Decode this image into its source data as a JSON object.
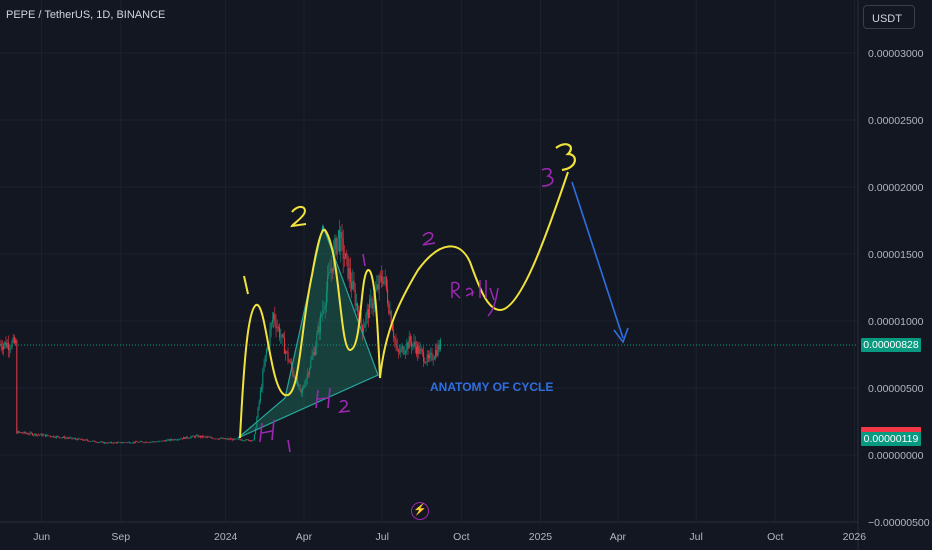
{
  "header": {
    "title": "PEPE / TetherUS, 1D, BINANCE"
  },
  "toolbar": {
    "currency_label": "USDT"
  },
  "price_badges": {
    "last": "0.00000828",
    "low_line": "0.00000119"
  },
  "annotations": {
    "cycle_text": "ANATOMY OF CYCLE",
    "labels": [
      "1",
      "2",
      "3",
      "1",
      "2",
      "3",
      "H1",
      "H2",
      "Rally"
    ],
    "bolt_icon": "lightning-bolt-icon"
  },
  "colors": {
    "background": "#131722",
    "up": "#089981",
    "down": "#f23645",
    "yellow_path": "#f2e33c",
    "blue_arrow": "#2f6fe0",
    "purple_text": "#9c27b0",
    "green_fill": "#1f8a6b"
  },
  "chart_data": {
    "type": "candlestick",
    "title": "PEPE / TetherUS, 1D, BINANCE",
    "y_ticks": [
      "0.00003000",
      "0.00002500",
      "0.00002000",
      "0.00001500",
      "0.00001000",
      "0.00000500",
      "0.00000000",
      "−0.00000500"
    ],
    "x_ticks": [
      "Jun",
      "Sep",
      "2024",
      "Apr",
      "Jul",
      "Oct",
      "2025",
      "Apr",
      "Jul",
      "Oct",
      "2026"
    ],
    "ylim": [
      -5e-06,
      3.3e-05
    ],
    "grid": true,
    "series": [
      {
        "points": [
          [
            "2023-05-20",
            1.7e-06
          ],
          [
            "2023-07-15",
            1.3e-06
          ],
          [
            "2023-09-01",
            9e-07
          ],
          [
            "2023-11-01",
            1e-06
          ],
          [
            "2023-12-15",
            1.4e-06
          ],
          [
            "2024-01-15",
            1.2e-06
          ],
          [
            "2024-02-20",
            1.1e-06
          ],
          [
            "2024-03-05",
            7.5e-06
          ],
          [
            "2024-03-14",
            1.05e-05
          ],
          [
            "2024-04-01",
            7e-06
          ],
          [
            "2024-04-15",
            4.5e-06
          ],
          [
            "2024-05-01",
            8e-06
          ],
          [
            "2024-05-28",
            1.65e-05
          ],
          [
            "2024-06-10",
            1.35e-05
          ],
          [
            "2024-06-25",
            9.5e-06
          ],
          [
            "2024-07-10",
            1.2e-05
          ],
          [
            "2024-07-20",
            1.35e-05
          ],
          [
            "2024-08-05",
            7.5e-06
          ],
          [
            "2024-08-20",
            8.5e-06
          ],
          [
            "2024-09-10",
            7e-06
          ],
          [
            "2024-09-25",
            8.3e-06
          ]
        ]
      }
    ],
    "last_price": 8.28e-06
  }
}
